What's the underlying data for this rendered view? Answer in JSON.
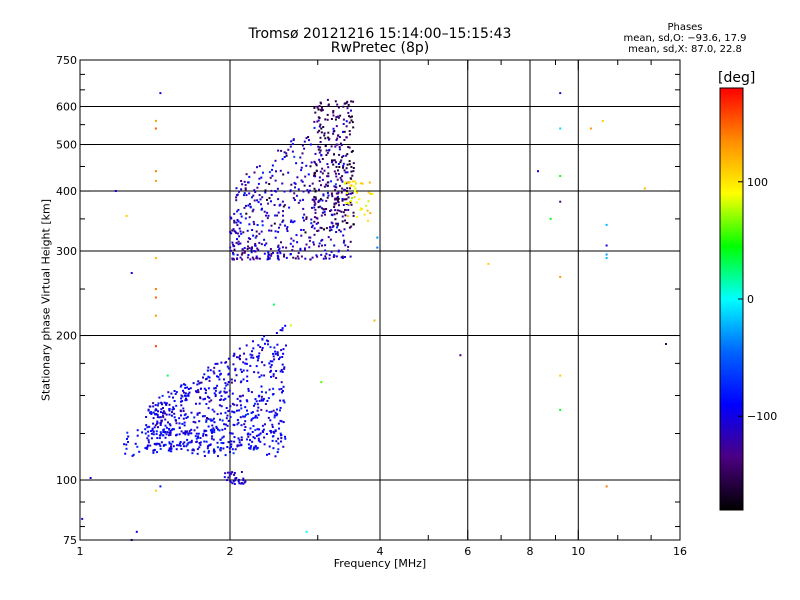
{
  "header": {
    "title_line1": "Tromsø 20121216 15:14:00–15:15:43",
    "title_line2": "RwPretec (8p)",
    "info_title": "Phases",
    "info_o": "mean, sd,O: −93.6, 17.9",
    "info_x": "mean, sd,X:  87.0, 22.8"
  },
  "chart_data": {
    "type": "scatter",
    "xlabel": "Frequency [MHz]",
    "ylabel": "Stationary phase Virtual Height [km]",
    "x_scale": "log",
    "y_scale": "log",
    "xlim": [
      1,
      16
    ],
    "ylim": [
      75,
      750
    ],
    "x_ticks": [
      1,
      2,
      4,
      6,
      8,
      10,
      16
    ],
    "y_ticks": [
      75,
      100,
      200,
      300,
      400,
      500,
      600,
      750
    ],
    "grid_x": [
      2,
      4,
      6,
      8,
      10
    ],
    "grid_y": [
      100,
      200,
      300,
      400,
      500,
      600
    ],
    "colorbar": {
      "label": "[deg]",
      "range": [
        -180,
        180
      ],
      "ticks": [
        100,
        0,
        -100
      ],
      "colors": [
        "#000000",
        "#4b0082",
        "#0000ff",
        "#0064ff",
        "#00ffff",
        "#00ff00",
        "#ffff00",
        "#ff8c00",
        "#ff0000"
      ]
    },
    "clusters": [
      {
        "name": "lower-cluster-main",
        "x_range": [
          1.35,
          2.6
        ],
        "y_range": [
          115,
          215
        ],
        "count": 650,
        "phase_mean": -98,
        "phase_sd": 14
      },
      {
        "name": "lower-cluster-base",
        "x_range": [
          1.22,
          2.55
        ],
        "y_range": [
          112,
          128
        ],
        "count": 130,
        "phase_mean": -90,
        "phase_sd": 12
      },
      {
        "name": "upper-cluster-main",
        "x_range": [
          2.0,
          3.5
        ],
        "y_range": [
          288,
          630
        ],
        "count": 520,
        "phase_mean": -115,
        "phase_sd": 20
      },
      {
        "name": "upper-cluster-violet",
        "x_range": [
          2.95,
          3.55
        ],
        "y_range": [
          330,
          620
        ],
        "count": 220,
        "phase_mean": -150,
        "phase_sd": 12
      },
      {
        "name": "upper-cluster-x",
        "x_range": [
          3.4,
          3.9
        ],
        "y_range": [
          345,
          420
        ],
        "count": 40,
        "phase_mean": 95,
        "phase_sd": 15
      },
      {
        "name": "low-patch",
        "x_range": [
          1.95,
          2.15
        ],
        "y_range": [
          98,
          104
        ],
        "count": 30,
        "phase_mean": -110,
        "phase_sd": 10
      }
    ],
    "scattered_points": [
      {
        "x": 1.45,
        "y": 640,
        "phase": -100
      },
      {
        "x": 1.42,
        "y": 560,
        "phase": 130
      },
      {
        "x": 1.42,
        "y": 540,
        "phase": 150
      },
      {
        "x": 1.42,
        "y": 440,
        "phase": 140
      },
      {
        "x": 1.42,
        "y": 420,
        "phase": 130
      },
      {
        "x": 1.42,
        "y": 290,
        "phase": 120
      },
      {
        "x": 1.42,
        "y": 250,
        "phase": 140
      },
      {
        "x": 1.42,
        "y": 240,
        "phase": 150
      },
      {
        "x": 1.42,
        "y": 220,
        "phase": 130
      },
      {
        "x": 1.42,
        "y": 190,
        "phase": 160
      },
      {
        "x": 1.42,
        "y": 95,
        "phase": 110
      },
      {
        "x": 1.45,
        "y": 97,
        "phase": -80
      },
      {
        "x": 1.27,
        "y": 270,
        "phase": -110
      },
      {
        "x": 1.3,
        "y": 78,
        "phase": -110
      },
      {
        "x": 1.27,
        "y": 75,
        "phase": -110
      },
      {
        "x": 1.01,
        "y": 83,
        "phase": -110
      },
      {
        "x": 1.05,
        "y": 101,
        "phase": -100
      },
      {
        "x": 1.18,
        "y": 400,
        "phase": -100
      },
      {
        "x": 1.24,
        "y": 355,
        "phase": 110
      },
      {
        "x": 1.5,
        "y": 165,
        "phase": 30
      },
      {
        "x": 3.9,
        "y": 215,
        "phase": 120
      },
      {
        "x": 3.95,
        "y": 320,
        "phase": -30
      },
      {
        "x": 3.95,
        "y": 305,
        "phase": -40
      },
      {
        "x": 3.05,
        "y": 160,
        "phase": 60
      },
      {
        "x": 2.65,
        "y": 210,
        "phase": 80
      },
      {
        "x": 2.45,
        "y": 232,
        "phase": 30
      },
      {
        "x": 2.85,
        "y": 78,
        "phase": 0
      },
      {
        "x": 5.8,
        "y": 182,
        "phase": -130
      },
      {
        "x": 6.6,
        "y": 282,
        "phase": 110
      },
      {
        "x": 8.3,
        "y": 440,
        "phase": -100
      },
      {
        "x": 8.8,
        "y": 350,
        "phase": 40
      },
      {
        "x": 9.2,
        "y": 640,
        "phase": -120
      },
      {
        "x": 9.2,
        "y": 540,
        "phase": -10
      },
      {
        "x": 9.2,
        "y": 430,
        "phase": 40
      },
      {
        "x": 9.2,
        "y": 380,
        "phase": -140
      },
      {
        "x": 9.2,
        "y": 265,
        "phase": 130
      },
      {
        "x": 9.2,
        "y": 165,
        "phase": 110
      },
      {
        "x": 9.2,
        "y": 140,
        "phase": 40
      },
      {
        "x": 10.6,
        "y": 540,
        "phase": 130
      },
      {
        "x": 11.2,
        "y": 560,
        "phase": 110
      },
      {
        "x": 11.4,
        "y": 340,
        "phase": -20
      },
      {
        "x": 11.4,
        "y": 308,
        "phase": -100
      },
      {
        "x": 11.4,
        "y": 295,
        "phase": -30
      },
      {
        "x": 11.4,
        "y": 290,
        "phase": -20
      },
      {
        "x": 11.4,
        "y": 97,
        "phase": 140
      },
      {
        "x": 13.6,
        "y": 405,
        "phase": 120
      },
      {
        "x": 15.0,
        "y": 192,
        "phase": -150
      }
    ]
  }
}
